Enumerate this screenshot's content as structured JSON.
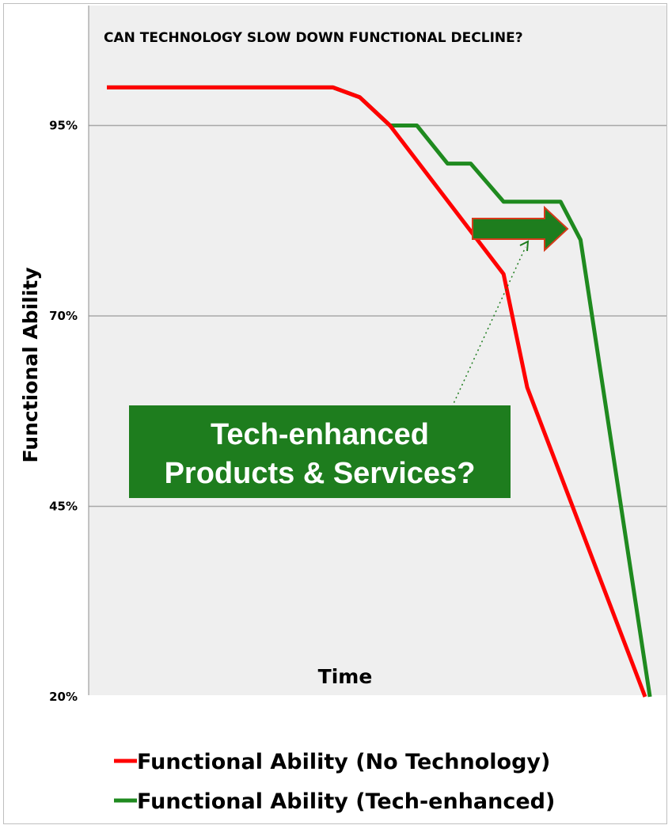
{
  "chart_data": {
    "type": "line",
    "title": "CAN TECHNOLOGY SLOW DOWN FUNCTIONAL DECLINE?",
    "xlabel": "Time",
    "ylabel": "Functional Ability",
    "yticks": [
      "95%",
      "70%",
      "45%",
      "20%"
    ],
    "ylim": [
      20,
      100
    ],
    "xlim": [
      0,
      100
    ],
    "grid": true,
    "legend_position": "bottom",
    "series": [
      {
        "name": "Functional Ability (No Technology)",
        "color": "#ff0000",
        "points": [
          [
            0,
            100
          ],
          [
            42,
            100
          ],
          [
            47,
            98.7
          ],
          [
            52.6,
            95
          ],
          [
            73.7,
            75.5
          ],
          [
            78.1,
            60.6
          ],
          [
            100,
            20
          ]
        ]
      },
      {
        "name": "Functional Ability (Tech-enhanced)",
        "color": "#1f8a1f",
        "points": [
          [
            0,
            100
          ],
          [
            42,
            100
          ],
          [
            47,
            98.7
          ],
          [
            52.6,
            95
          ],
          [
            57.6,
            95
          ],
          [
            63.3,
            90
          ],
          [
            67.6,
            90
          ],
          [
            73.7,
            85
          ],
          [
            84.3,
            85
          ],
          [
            88,
            80
          ],
          [
            100.9,
            20
          ]
        ]
      }
    ],
    "annotation": {
      "lines": [
        "Tech-enhanced",
        "Products & Services?"
      ],
      "box_color": "#1e7d1e"
    }
  }
}
